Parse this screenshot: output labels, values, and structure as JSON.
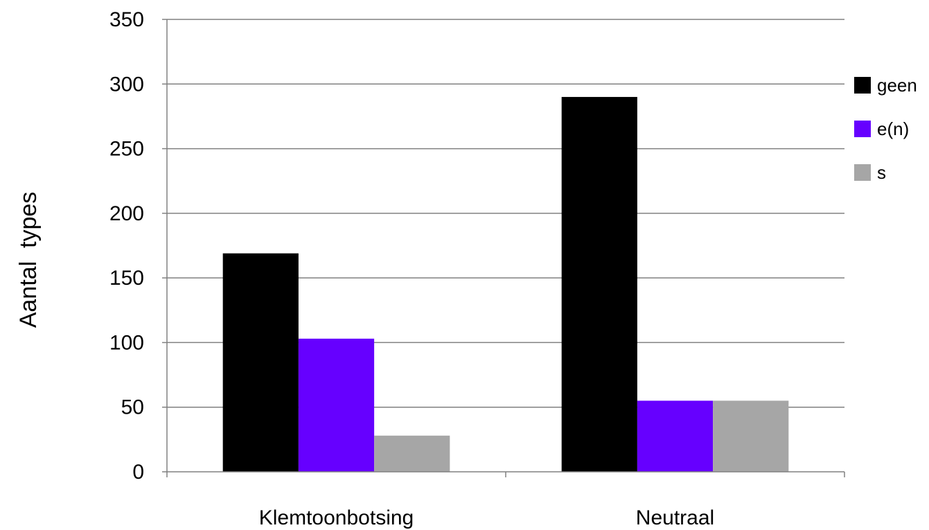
{
  "chart_data": {
    "type": "bar",
    "title": "",
    "xlabel": "",
    "ylabel": "Aantal  types",
    "categories": [
      "Klemtoonbotsing",
      "Neutraal"
    ],
    "series": [
      {
        "name": "geen",
        "values": [
          169,
          290
        ],
        "color": "#000000"
      },
      {
        "name": "e(n)",
        "values": [
          103,
          55
        ],
        "color": "#6600ff"
      },
      {
        "name": "s",
        "values": [
          28,
          55
        ],
        "color": "#a6a6a6"
      }
    ],
    "ylim": [
      0,
      350
    ],
    "yticks": [
      0,
      50,
      100,
      150,
      200,
      250,
      300,
      350
    ],
    "grid": true,
    "legend_position": "right"
  }
}
